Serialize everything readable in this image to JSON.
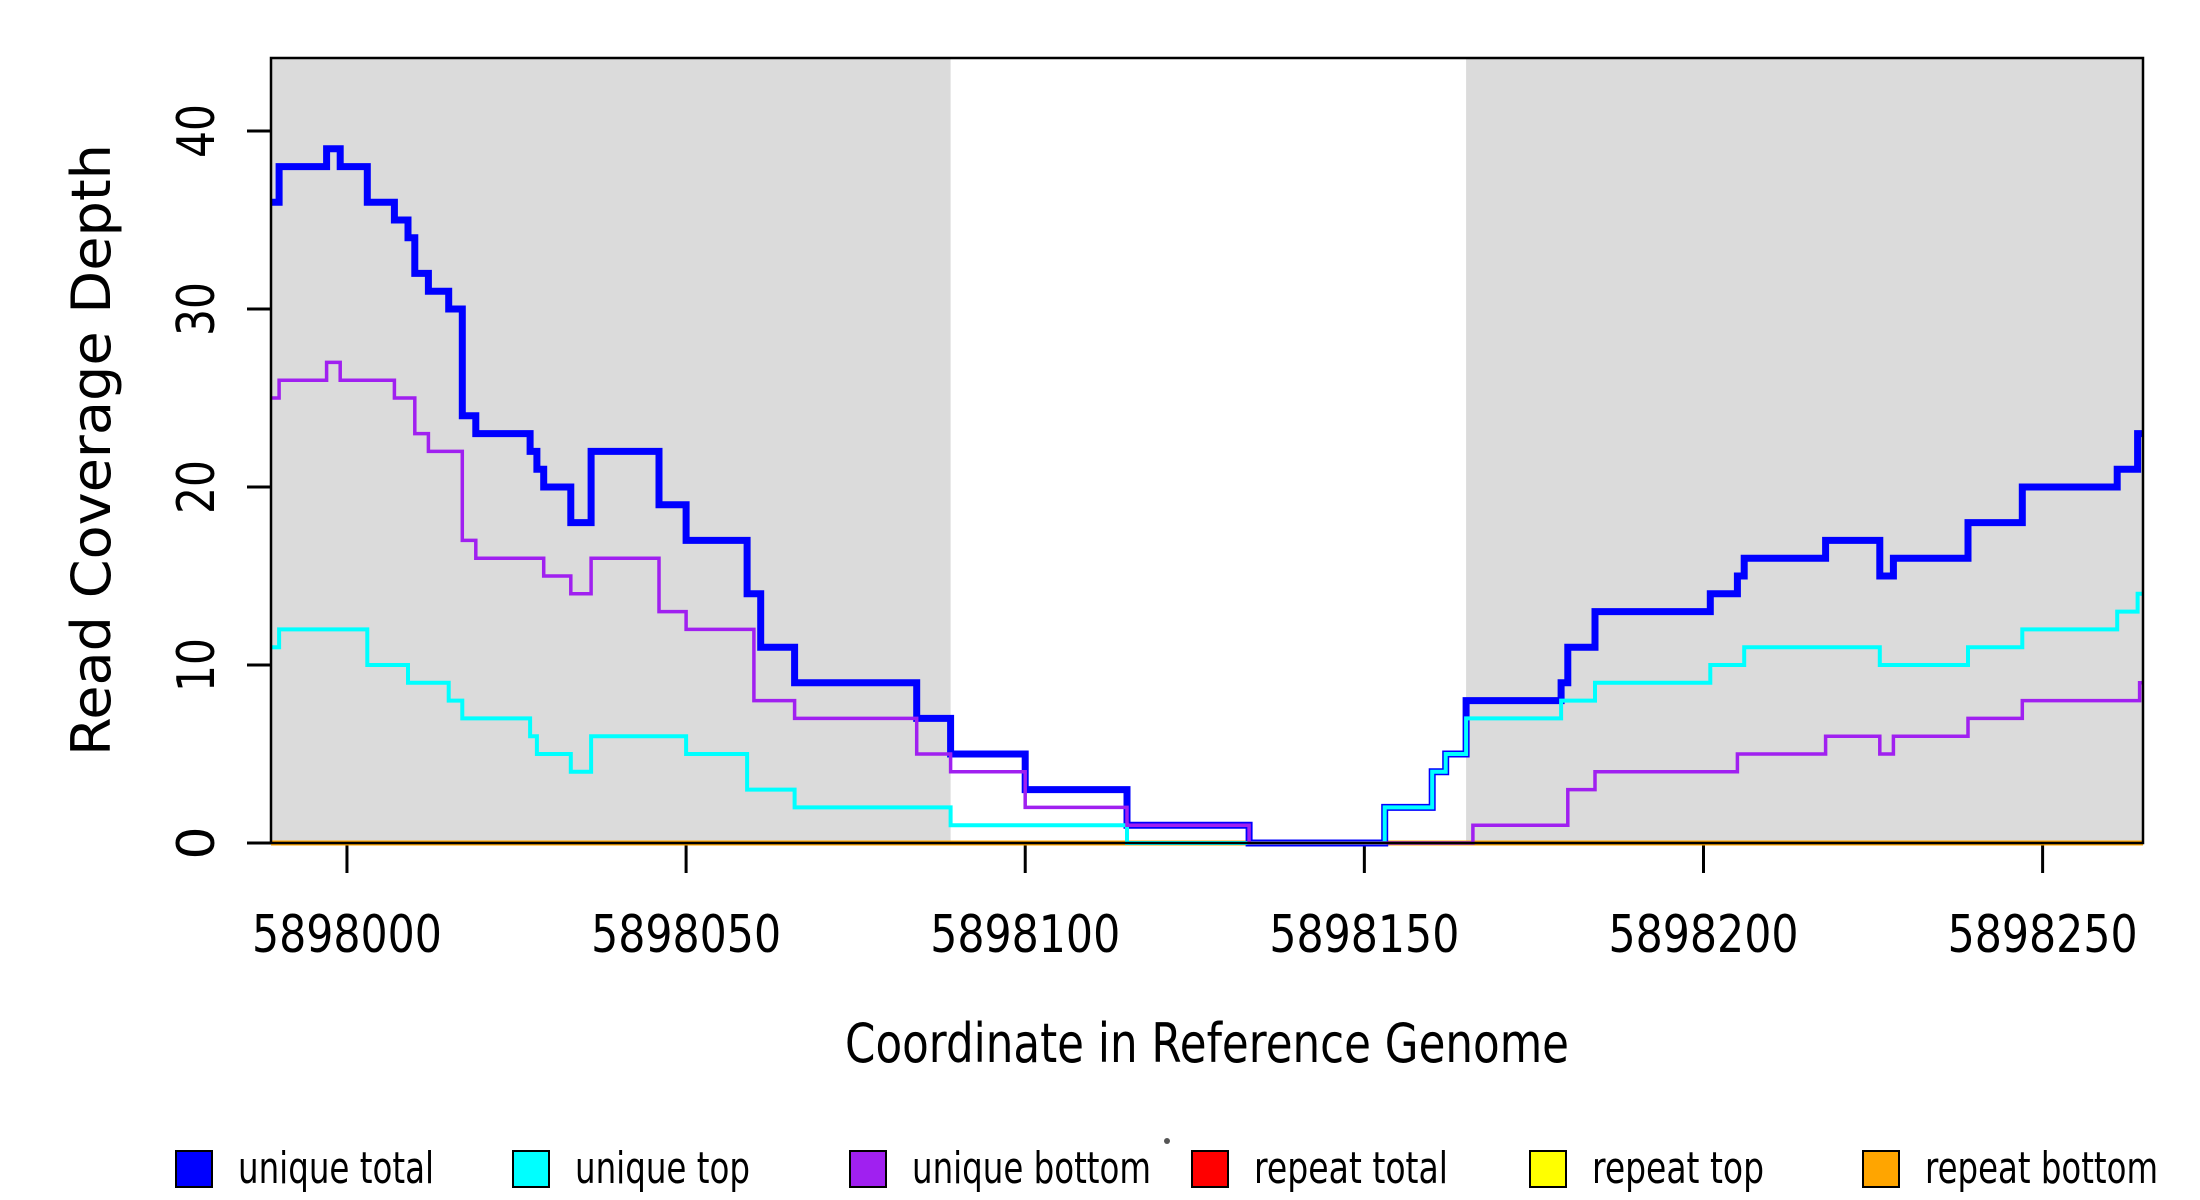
{
  "chart_data": {
    "type": "line",
    "subtype": "step-coverage",
    "title": "",
    "xlabel": "Coordinate in Reference Genome",
    "ylabel": "Read Coverage Depth",
    "xlim": [
      5897988.8,
      5898264.8
    ],
    "ylim": [
      0,
      44.1
    ],
    "grid": false,
    "background_color": "#FFFFFF",
    "shaded_region_color": "#DBDBDB",
    "x_ticks": [
      5898000,
      5898050,
      5898100,
      5898150,
      5898200,
      5898250
    ],
    "x_tick_labels": [
      "5898000",
      "5898050",
      "5898100",
      "5898150",
      "5898200",
      "5898250"
    ],
    "y_ticks": [
      0,
      10,
      20,
      30,
      40
    ],
    "y_tick_labels": [
      "0",
      "10",
      "20",
      "30",
      "40"
    ],
    "shaded_regions": [
      {
        "name": "left-shaded-region",
        "from": 5897988.8,
        "to": 5898089
      },
      {
        "name": "right-shaded-region",
        "from": 5898165,
        "to": 5898264.8
      }
    ],
    "draw_order": [
      "repeat total",
      "repeat top",
      "repeat bottom",
      "unique total",
      "unique top",
      "unique bottom"
    ],
    "series": [
      {
        "name": "unique total",
        "color": "#0000FF",
        "line_width": 7,
        "steps": [
          [
            5897988.8,
            36
          ],
          [
            5897990,
            38
          ],
          [
            5897997,
            39
          ],
          [
            5897999,
            38
          ],
          [
            5898003,
            36
          ],
          [
            5898007,
            35
          ],
          [
            5898009,
            34
          ],
          [
            5898010,
            32
          ],
          [
            5898012,
            31
          ],
          [
            5898015,
            30
          ],
          [
            5898017,
            24
          ],
          [
            5898019,
            23
          ],
          [
            5898027,
            22
          ],
          [
            5898028,
            21
          ],
          [
            5898029,
            20
          ],
          [
            5898033,
            18
          ],
          [
            5898036,
            22
          ],
          [
            5898046,
            19
          ],
          [
            5898050,
            17
          ],
          [
            5898059,
            14
          ],
          [
            5898061,
            11
          ],
          [
            5898066,
            9
          ],
          [
            5898084,
            7
          ],
          [
            5898089,
            5
          ],
          [
            5898100,
            3
          ],
          [
            5898115,
            1
          ],
          [
            5898133,
            0
          ],
          [
            5898153,
            2
          ],
          [
            5898160,
            4
          ],
          [
            5898162,
            5
          ],
          [
            5898165,
            8
          ],
          [
            5898179,
            9
          ],
          [
            5898180,
            11
          ],
          [
            5898184,
            13
          ],
          [
            5898201,
            14
          ],
          [
            5898205,
            15
          ],
          [
            5898206,
            16
          ],
          [
            5898218,
            17
          ],
          [
            5898226,
            15
          ],
          [
            5898228,
            16
          ],
          [
            5898239,
            18
          ],
          [
            5898247,
            20
          ],
          [
            5898261,
            21
          ],
          [
            5898264,
            23
          ]
        ]
      },
      {
        "name": "unique top",
        "color": "#00FFFF",
        "line_width": 4,
        "steps": [
          [
            5897988.8,
            11
          ],
          [
            5897990,
            12
          ],
          [
            5898003,
            10
          ],
          [
            5898009,
            9
          ],
          [
            5898015,
            8
          ],
          [
            5898017,
            7
          ],
          [
            5898027,
            6
          ],
          [
            5898028,
            5
          ],
          [
            5898033,
            4
          ],
          [
            5898036,
            6
          ],
          [
            5898050,
            5
          ],
          [
            5898059,
            3
          ],
          [
            5898066,
            2
          ],
          [
            5898089,
            1
          ],
          [
            5898115,
            0
          ],
          [
            5898153,
            2
          ],
          [
            5898160,
            4
          ],
          [
            5898162,
            5
          ],
          [
            5898165,
            7
          ],
          [
            5898179,
            8
          ],
          [
            5898184,
            9
          ],
          [
            5898201,
            10
          ],
          [
            5898206,
            11
          ],
          [
            5898226,
            10
          ],
          [
            5898239,
            11
          ],
          [
            5898247,
            12
          ],
          [
            5898261,
            13
          ],
          [
            5898264,
            14
          ]
        ]
      },
      {
        "name": "unique bottom",
        "color": "#A020F0",
        "line_width": 3.5,
        "steps": [
          [
            5897988.8,
            25
          ],
          [
            5897990,
            26
          ],
          [
            5897997,
            27
          ],
          [
            5897999,
            26
          ],
          [
            5898007,
            25
          ],
          [
            5898010,
            23
          ],
          [
            5898012,
            22
          ],
          [
            5898017,
            17
          ],
          [
            5898019,
            16
          ],
          [
            5898029,
            15
          ],
          [
            5898033,
            14
          ],
          [
            5898036,
            16
          ],
          [
            5898046,
            13
          ],
          [
            5898050,
            12
          ],
          [
            5898060,
            8
          ],
          [
            5898066,
            7
          ],
          [
            5898084,
            5
          ],
          [
            5898089,
            4
          ],
          [
            5898100,
            2
          ],
          [
            5898115,
            1
          ],
          [
            5898133,
            0
          ],
          [
            5898166,
            1
          ],
          [
            5898180,
            3
          ],
          [
            5898184,
            4
          ],
          [
            5898205,
            5
          ],
          [
            5898218,
            6
          ],
          [
            5898226,
            5
          ],
          [
            5898228,
            6
          ],
          [
            5898239,
            7
          ],
          [
            5898247,
            8
          ],
          [
            5898264.3,
            9
          ]
        ]
      },
      {
        "name": "repeat total",
        "color": "#FF0000",
        "line_width": 3,
        "steps": [
          [
            5897988.8,
            0
          ]
        ]
      },
      {
        "name": "repeat top",
        "color": "#FFFF00",
        "line_width": 3,
        "steps": [
          [
            5897988.8,
            0
          ]
        ]
      },
      {
        "name": "repeat bottom",
        "color": "#FFA500",
        "line_width": 5,
        "steps": [
          [
            5897988.8,
            0
          ]
        ]
      }
    ],
    "legend": {
      "position": "bottom",
      "items": [
        {
          "label": "unique total",
          "color": "#0000FF"
        },
        {
          "label": "unique top",
          "color": "#00FFFF"
        },
        {
          "label": "unique bottom",
          "color": "#A020F0"
        },
        {
          "label": "repeat total",
          "color": "#FF0000"
        },
        {
          "label": "repeat top",
          "color": "#FFFF00"
        },
        {
          "label": "repeat bottom",
          "color": "#FFA500"
        }
      ]
    }
  }
}
